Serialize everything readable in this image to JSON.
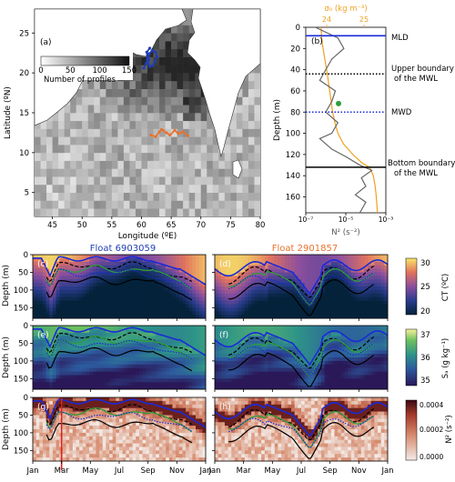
{
  "chart_data": [
    {
      "type": "heatmap",
      "panel": "a",
      "xlabel": "Longitude (ºE)",
      "ylabel": "Latitude (ºN)",
      "x_ticks": [
        "45",
        "50",
        "55",
        "60",
        "65",
        "70",
        "75",
        "80"
      ],
      "y_ticks": [
        "5",
        "10",
        "15",
        "20",
        "25"
      ],
      "xlim": [
        42,
        80
      ],
      "ylim": [
        2,
        28
      ],
      "colorbar_label": "Number of profiles",
      "colorbar_ticks": [
        "0",
        "50",
        "100",
        "150"
      ],
      "colorbar_range": [
        0,
        150
      ],
      "float_tracks": [
        {
          "name": "6903059",
          "color": "#1f3fb5",
          "points": [
            [
              60.4,
              20.6
            ],
            [
              60.8,
              21.2
            ],
            [
              61.2,
              21.6
            ],
            [
              61.3,
              22.4
            ],
            [
              61.8,
              22.8
            ],
            [
              62.4,
              22.6
            ],
            [
              62.6,
              22.0
            ],
            [
              62.2,
              21.4
            ],
            [
              61.9,
              20.9
            ],
            [
              61.4,
              20.8
            ],
            [
              61.0,
              21.6
            ],
            [
              60.9,
              22.6
            ],
            [
              61.4,
              23.1
            ]
          ]
        },
        {
          "name": "2901857",
          "color": "#e8722c",
          "points": [
            [
              61.6,
              12.2
            ],
            [
              62.4,
              12.0
            ],
            [
              63.0,
              12.6
            ],
            [
              63.4,
              12.9
            ],
            [
              64.2,
              12.5
            ],
            [
              64.8,
              12.2
            ],
            [
              65.6,
              12.8
            ],
            [
              66.2,
              12.4
            ],
            [
              67.0,
              12.6
            ],
            [
              67.8,
              12.1
            ]
          ]
        }
      ]
    },
    {
      "type": "line",
      "panel": "b",
      "top_axis_label": "σ₀ (kg m⁻³)",
      "top_ticks": [
        "24",
        "25"
      ],
      "bottom_axis_label": "N² (s⁻²)",
      "bottom_ticks": [
        "10⁻⁷",
        "10⁻⁵",
        "10⁻³"
      ],
      "ylabel": "Depth (m)",
      "y_ticks": [
        "0",
        "20",
        "40",
        "60",
        "80",
        "100",
        "120",
        "140",
        "160"
      ],
      "ylim": [
        175,
        0
      ],
      "x_scale": "log",
      "series": [
        {
          "name": "σ₀",
          "color": "#f0a020",
          "x": [
            23.85,
            23.86,
            23.88,
            23.95,
            24.02,
            24.08,
            24.12,
            24.16,
            24.22,
            24.3,
            24.45,
            24.7,
            24.95,
            25.15,
            25.25,
            25.3,
            25.33,
            25.36
          ],
          "y": [
            0,
            8,
            15,
            30,
            45,
            60,
            70,
            80,
            90,
            100,
            110,
            120,
            128,
            132,
            140,
            150,
            160,
            175
          ]
        },
        {
          "name": "N²",
          "color": "#666666",
          "x": [
            3e-07,
            4e-06,
            8e-06,
            2e-06,
            1e-06,
            5e-07,
            3e-06,
            2e-06,
            1e-06,
            4e-06,
            2e-06,
            5e-07,
            2e-06,
            1e-05,
            5e-05,
            0.0002,
            6e-05,
            0.0001,
            3e-05,
            0.0001,
            5e-05
          ],
          "y": [
            0,
            10,
            20,
            30,
            40,
            50,
            60,
            70,
            80,
            90,
            100,
            105,
            115,
            122,
            130,
            135,
            142,
            150,
            158,
            165,
            175
          ]
        }
      ],
      "hlines": [
        {
          "label": "MLD",
          "depth": 8,
          "color": "#1a2ad8",
          "style": "solid"
        },
        {
          "label": "Upper boundary of the MWL",
          "depth": 44,
          "color": "#000000",
          "style": "dotted"
        },
        {
          "label": "MWD",
          "depth": 80,
          "color": "#1a2ad8",
          "style": "dotted"
        },
        {
          "label": "Bottom boundary of the MWL",
          "depth": 132,
          "color": "#000000",
          "style": "solid"
        }
      ],
      "marker": {
        "depth": 72,
        "color": "#2f9e3a"
      }
    },
    {
      "type": "heatmap",
      "panels": [
        "c",
        "d",
        "e",
        "f",
        "g",
        "h"
      ],
      "column_titles": [
        {
          "text": "Float 6903059",
          "color": "#1f3fb5"
        },
        {
          "text": "Float 2901857",
          "color": "#e8722c"
        }
      ],
      "ylabel": "Depth (m)",
      "y_ticks": [
        "0",
        "50",
        "100",
        "150"
      ],
      "ylim": [
        180,
        0
      ],
      "x_ticks": [
        "Jan",
        "Mar",
        "May",
        "Jul",
        "Sep",
        "Nov",
        "Jan"
      ],
      "row_colorbars": [
        {
          "label": "CT (ºC)",
          "ticks": [
            "20",
            "25",
            "30"
          ],
          "range": [
            18,
            30
          ]
        },
        {
          "label": "SA (g kg⁻¹)",
          "ticks": [
            "35",
            "36",
            "37"
          ],
          "range": [
            35,
            37.5
          ]
        },
        {
          "label": "N² (s⁻²)",
          "ticks": [
            "0.0000",
            "0.0002",
            "0.0004"
          ],
          "range": [
            0,
            0.0005
          ]
        }
      ],
      "red_marker_month": "Mar"
    }
  ],
  "labels": {
    "a": "(a)",
    "b": "(b)",
    "c": "(c)",
    "d": "(d)",
    "e": "(e)",
    "f": "(f)",
    "g": "(g)",
    "h": "(h)",
    "mld": "MLD",
    "upper1": "Upper boundary",
    "upper2": "of the MWL",
    "mwd": "MWD",
    "bottom1": "Bottom boundary",
    "bottom2": "of the MWL",
    "float1": "Float 6903059",
    "float2": "Float 2901857",
    "depth": "Depth (m)",
    "lat": "Latitude (ºN)",
    "lon": "Longitude (ºE)",
    "num_profiles": "Number of profiles",
    "sigma": "σ₀ (kg m⁻³)",
    "n2": "N² (s⁻²)",
    "ct": "CT (ºC)",
    "sa": "Sₐ (g kg⁻¹)"
  }
}
